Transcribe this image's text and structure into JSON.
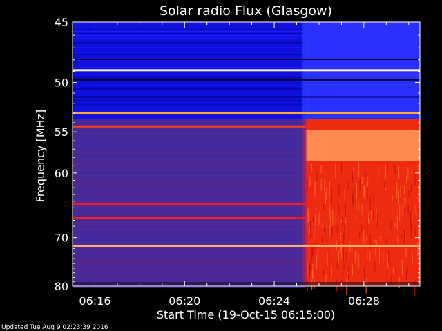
{
  "chart_data": {
    "type": "heatmap",
    "title": "Solar radio Flux (Glasgow)",
    "ylabel": "Frequency [MHz]",
    "xlabel": "Start Time (19-Oct-15 06:15:00)",
    "x_range_minutes": [
      15.0,
      30.5
    ],
    "x_ticks": [
      {
        "minute": 16,
        "label": "06:16"
      },
      {
        "minute": 20,
        "label": "06:20"
      },
      {
        "minute": 24,
        "label": "06:24"
      },
      {
        "minute": 28,
        "label": "06:28"
      }
    ],
    "y_range_mhz": [
      45,
      80
    ],
    "y_scale": "reciprocal",
    "y_ticks": [
      45,
      50,
      55,
      60,
      70,
      80
    ],
    "burst_onset_minute": 25.4,
    "background_colors": {
      "upper_band_before_burst": "#1010e0",
      "upper_band_after_burst": "#2a30ff",
      "lower_band_before_burst": "#4a2a9a",
      "lower_band_after_burst": "#ee2a10",
      "hot_band_after_burst": "#ff8a50"
    },
    "bright_lines": [
      {
        "freq": 48.9,
        "color": "#fff2c0",
        "full_width": true
      },
      {
        "freq": 53.0,
        "color": "#ffaa30",
        "full_width": true
      },
      {
        "freq": 54.4,
        "color": "#ff4010",
        "full_width": false
      },
      {
        "freq": 64.4,
        "color": "#ff1a1a",
        "full_width": false
      },
      {
        "freq": 66.6,
        "color": "#ff1a1a",
        "full_width": false
      },
      {
        "freq": 71.5,
        "color": "#ffb070",
        "full_width": true
      }
    ]
  },
  "footer": "Updated Tue Aug  9 02:23:39 2016"
}
